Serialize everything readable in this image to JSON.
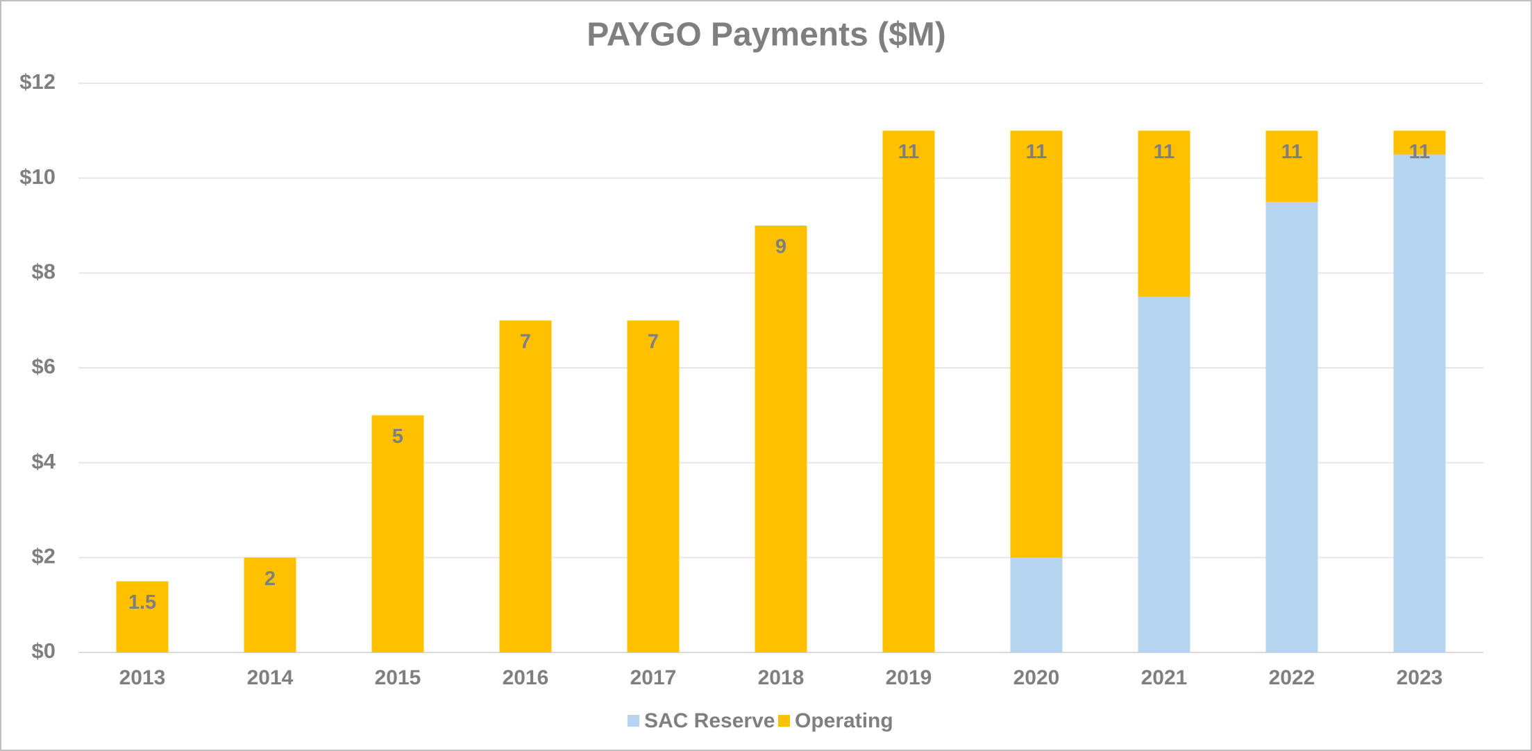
{
  "chart_data": {
    "type": "stacked_bar",
    "title": "PAYGO Payments ($M)",
    "categories": [
      "2013",
      "2014",
      "2015",
      "2016",
      "2017",
      "2018",
      "2019",
      "2020",
      "2021",
      "2022",
      "2023"
    ],
    "series": [
      {
        "name": "SAC Reserve",
        "color": "#b4d4f0",
        "values": [
          0,
          0,
          0,
          0,
          0,
          0,
          0,
          2,
          7.5,
          9.5,
          10.5
        ]
      },
      {
        "name": "Operating",
        "color": "#ffc000",
        "values": [
          1.5,
          2,
          5,
          7,
          7,
          9,
          11,
          9,
          3.5,
          1.5,
          0.5
        ]
      }
    ],
    "totals": [
      1.5,
      2,
      5,
      7,
      7,
      9,
      11,
      11,
      11,
      11,
      11
    ],
    "ylim": [
      0,
      12
    ],
    "yticks": [
      {
        "value": 0,
        "label": "$0"
      },
      {
        "value": 2,
        "label": "$2"
      },
      {
        "value": 4,
        "label": "$4"
      },
      {
        "value": 6,
        "label": "$6"
      },
      {
        "value": 8,
        "label": "$8"
      },
      {
        "value": 10,
        "label": "$10"
      },
      {
        "value": 12,
        "label": "$12"
      }
    ],
    "grid": true,
    "legend": "bottom"
  }
}
